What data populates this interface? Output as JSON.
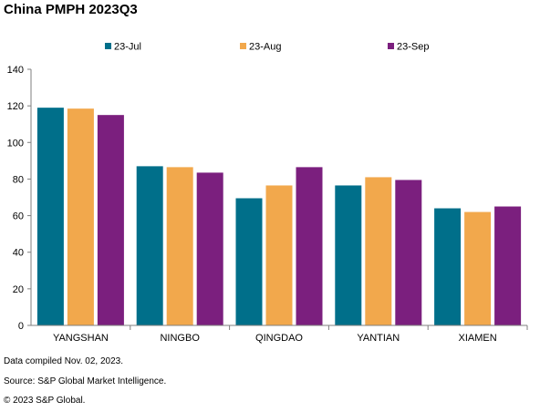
{
  "title": "China PMPH 2023Q3",
  "notes": {
    "compiled": "Data compiled Nov. 02, 2023.",
    "source": "Source: S&P Global Market Intelligence.",
    "copyright": "© 2023 S&P Global."
  },
  "chart_data": {
    "type": "bar",
    "title": "China PMPH 2023Q3",
    "xlabel": "",
    "ylabel": "",
    "categories": [
      "YANGSHAN",
      "NINGBO",
      "QINGDAO",
      "YANTIAN",
      "XIAMEN"
    ],
    "series": [
      {
        "name": "23-Jul",
        "color": "#006f8a",
        "values": [
          119,
          87,
          69.5,
          76.5,
          64
        ]
      },
      {
        "name": "23-Aug",
        "color": "#f2a84c",
        "values": [
          118.5,
          86.5,
          76.5,
          81,
          62
        ]
      },
      {
        "name": "23-Sep",
        "color": "#7b1f7e",
        "values": [
          115,
          83.5,
          86.5,
          79.5,
          65
        ]
      }
    ],
    "ylim": [
      0,
      140
    ],
    "yticks": [
      0,
      20,
      40,
      60,
      80,
      100,
      120,
      140
    ],
    "grid": false,
    "legend": "top"
  }
}
